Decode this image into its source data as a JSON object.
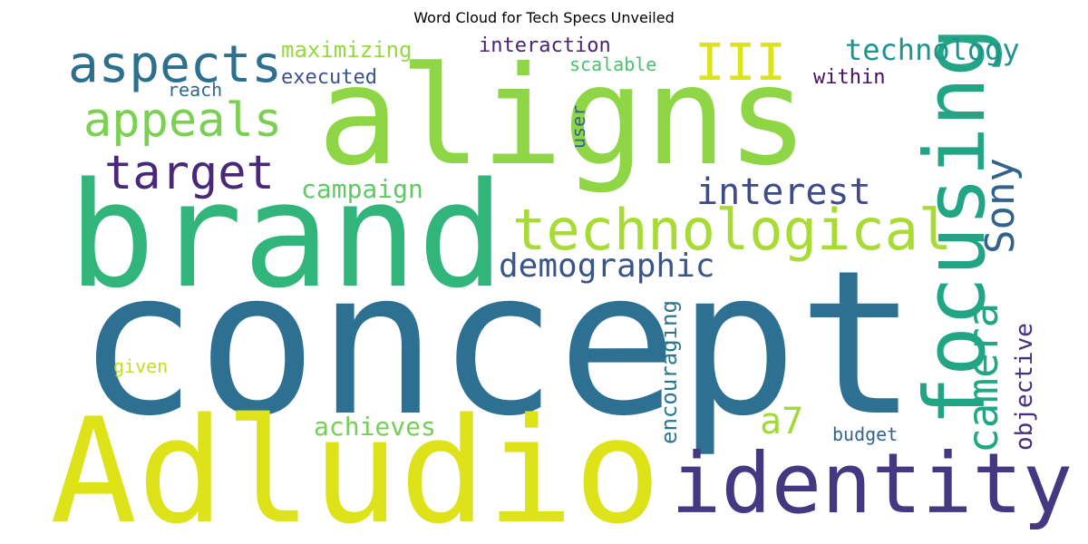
{
  "chart_data": {
    "type": "wordcloud",
    "title": "Word Cloud for Tech Specs Unveiled",
    "colormap": "viridis",
    "words": [
      {
        "text": "concept",
        "color": "#2e7092"
      },
      {
        "text": "Adludio",
        "color": "#dde318"
      },
      {
        "text": "brand",
        "color": "#31b57b"
      },
      {
        "text": "aligns",
        "color": "#8ed645"
      },
      {
        "text": "identity",
        "color": "#453781"
      },
      {
        "text": "focusing",
        "color": "#21a585"
      },
      {
        "text": "technological",
        "color": "#a8db34"
      },
      {
        "text": "aspects",
        "color": "#2d708e"
      },
      {
        "text": "appeals",
        "color": "#7ad151"
      },
      {
        "text": "target",
        "color": "#482878"
      },
      {
        "text": "camera",
        "color": "#22a785"
      },
      {
        "text": "Sony",
        "color": "#33638d"
      },
      {
        "text": "interest",
        "color": "#3e4a89"
      },
      {
        "text": "demographic",
        "color": "#39568c"
      },
      {
        "text": "a7",
        "color": "#a0da39"
      },
      {
        "text": "III",
        "color": "#dce319"
      },
      {
        "text": "technology",
        "color": "#20938c"
      },
      {
        "text": "campaign",
        "color": "#5ec962"
      },
      {
        "text": "achieves",
        "color": "#73d055"
      },
      {
        "text": "objective",
        "color": "#472f7d"
      },
      {
        "text": "encouraging",
        "color": "#2a788e"
      },
      {
        "text": "maximizing",
        "color": "#95d840"
      },
      {
        "text": "interaction",
        "color": "#482475"
      },
      {
        "text": "executed",
        "color": "#3b528b"
      },
      {
        "text": "scalable",
        "color": "#4ac16d"
      },
      {
        "text": "within",
        "color": "#471063"
      },
      {
        "text": "reach",
        "color": "#31688e"
      },
      {
        "text": "user",
        "color": "#355f8d"
      },
      {
        "text": "given",
        "color": "#c2df23"
      },
      {
        "text": "budget",
        "color": "#33638d"
      }
    ]
  }
}
